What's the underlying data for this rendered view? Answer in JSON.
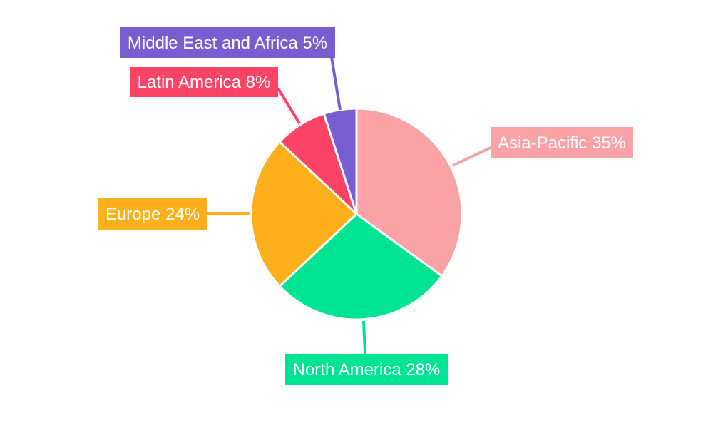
{
  "chart_data": {
    "type": "pie",
    "title": "",
    "legend": "none",
    "slices": [
      {
        "label": "Asia-Pacific",
        "value": 35,
        "display": "Asia-Pacific 35%",
        "color": "#f9a3a6"
      },
      {
        "label": "North America",
        "value": 28,
        "display": "North America 28%",
        "color": "#00e394"
      },
      {
        "label": "Europe",
        "value": 24,
        "display": "Europe 24%",
        "color": "#fdb01b"
      },
      {
        "label": "Latin America",
        "value": 8,
        "display": "Latin America 8%",
        "color": "#fd4467"
      },
      {
        "label": "Middle East and Africa",
        "value": 5,
        "display": "Middle East and Africa 5%",
        "color": "#775dd0"
      }
    ]
  }
}
